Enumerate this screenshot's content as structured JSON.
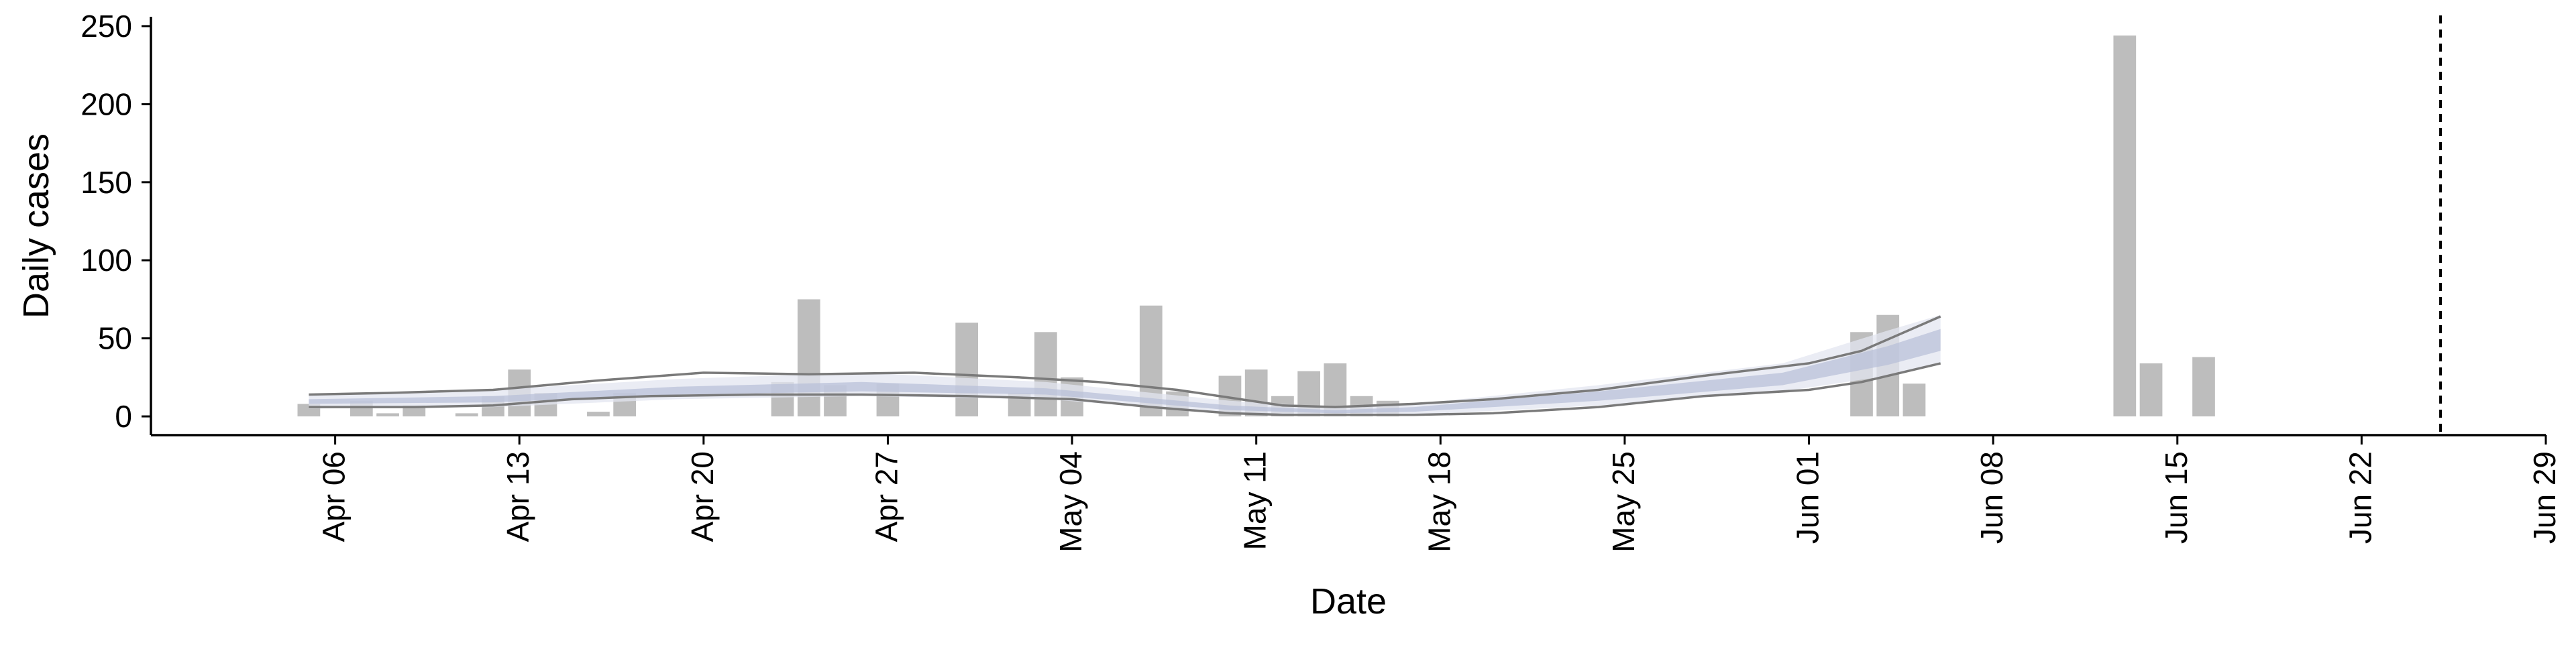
{
  "chart_data": {
    "type": "bar",
    "xlabel": "Date",
    "ylabel": "Daily cases",
    "xlim": [
      "2020-03-30",
      "2020-06-29"
    ],
    "ylim": [
      -12,
      256
    ],
    "x_ticks": [
      {
        "date": "2020-04-06",
        "label": "Apr 06"
      },
      {
        "date": "2020-04-13",
        "label": "Apr 13"
      },
      {
        "date": "2020-04-20",
        "label": "Apr 20"
      },
      {
        "date": "2020-04-27",
        "label": "Apr 27"
      },
      {
        "date": "2020-05-04",
        "label": "May 04"
      },
      {
        "date": "2020-05-11",
        "label": "May 11"
      },
      {
        "date": "2020-05-18",
        "label": "May 18"
      },
      {
        "date": "2020-05-25",
        "label": "May 25"
      },
      {
        "date": "2020-06-01",
        "label": "Jun 01"
      },
      {
        "date": "2020-06-08",
        "label": "Jun 08"
      },
      {
        "date": "2020-06-15",
        "label": "Jun 15"
      },
      {
        "date": "2020-06-22",
        "label": "Jun 22"
      },
      {
        "date": "2020-06-29",
        "label": "Jun 29"
      }
    ],
    "y_ticks": [
      0,
      50,
      100,
      150,
      200,
      250
    ],
    "grid": false,
    "bars": [
      {
        "date": "2020-04-05",
        "value": 8
      },
      {
        "date": "2020-04-07",
        "value": 10
      },
      {
        "date": "2020-04-08",
        "value": 2
      },
      {
        "date": "2020-04-09",
        "value": 7
      },
      {
        "date": "2020-04-11",
        "value": 2
      },
      {
        "date": "2020-04-12",
        "value": 13
      },
      {
        "date": "2020-04-13",
        "value": 30
      },
      {
        "date": "2020-04-14",
        "value": 15
      },
      {
        "date": "2020-04-16",
        "value": 3
      },
      {
        "date": "2020-04-17",
        "value": 15
      },
      {
        "date": "2020-04-23",
        "value": 22
      },
      {
        "date": "2020-04-24",
        "value": 75
      },
      {
        "date": "2020-04-25",
        "value": 20
      },
      {
        "date": "2020-04-27",
        "value": 21
      },
      {
        "date": "2020-04-30",
        "value": 60
      },
      {
        "date": "2020-05-02",
        "value": 15
      },
      {
        "date": "2020-05-03",
        "value": 54
      },
      {
        "date": "2020-05-04",
        "value": 25
      },
      {
        "date": "2020-05-07",
        "value": 71
      },
      {
        "date": "2020-05-08",
        "value": 16
      },
      {
        "date": "2020-05-10",
        "value": 26
      },
      {
        "date": "2020-05-11",
        "value": 30
      },
      {
        "date": "2020-05-12",
        "value": 13
      },
      {
        "date": "2020-05-13",
        "value": 29
      },
      {
        "date": "2020-05-14",
        "value": 34
      },
      {
        "date": "2020-05-15",
        "value": 13
      },
      {
        "date": "2020-05-16",
        "value": 10
      },
      {
        "date": "2020-06-03",
        "value": 54
      },
      {
        "date": "2020-06-04",
        "value": 65
      },
      {
        "date": "2020-06-05",
        "value": 21
      },
      {
        "date": "2020-06-13",
        "value": 244
      },
      {
        "date": "2020-06-14",
        "value": 34
      },
      {
        "date": "2020-06-16",
        "value": 38
      }
    ],
    "bands": [
      {
        "role": "outer",
        "x": [
          "2020-04-05",
          "2020-04-12",
          "2020-04-19",
          "2020-04-26",
          "2020-05-03",
          "2020-05-10",
          "2020-05-14",
          "2020-05-17",
          "2020-05-24",
          "2020-05-31",
          "2020-06-04",
          "2020-06-06"
        ],
        "upper": [
          14,
          17,
          24,
          28,
          22,
          10,
          6,
          8,
          20,
          34,
          55,
          65
        ],
        "lower": [
          5,
          6,
          11,
          13,
          11,
          2,
          1,
          1,
          7,
          16,
          26,
          34
        ]
      },
      {
        "role": "inner",
        "x": [
          "2020-04-05",
          "2020-04-12",
          "2020-04-19",
          "2020-04-26",
          "2020-05-03",
          "2020-05-10",
          "2020-05-14",
          "2020-05-17",
          "2020-05-24",
          "2020-05-31",
          "2020-06-04",
          "2020-06-06"
        ],
        "upper": [
          11,
          13,
          19,
          22,
          18,
          7,
          4,
          6,
          16,
          28,
          45,
          56
        ],
        "lower": [
          8,
          9,
          14,
          16,
          14,
          4,
          2,
          3,
          10,
          20,
          33,
          42
        ]
      }
    ],
    "boundary_lines": [
      {
        "x": [
          "2020-04-05",
          "2020-04-08",
          "2020-04-12",
          "2020-04-14",
          "2020-04-16",
          "2020-04-20",
          "2020-04-24",
          "2020-04-28",
          "2020-05-02",
          "2020-05-05",
          "2020-05-08",
          "2020-05-10",
          "2020-05-12",
          "2020-05-14",
          "2020-05-17",
          "2020-05-20",
          "2020-05-24",
          "2020-05-28",
          "2020-06-01",
          "2020-06-03",
          "2020-06-06"
        ],
        "values": [
          14,
          15,
          17,
          20,
          23,
          28,
          27,
          28,
          25,
          22,
          17,
          12,
          7,
          6,
          8,
          11,
          17,
          26,
          34,
          42,
          64
        ]
      },
      {
        "x": [
          "2020-04-05",
          "2020-04-09",
          "2020-04-12",
          "2020-04-15",
          "2020-04-18",
          "2020-04-22",
          "2020-04-26",
          "2020-04-30",
          "2020-05-04",
          "2020-05-07",
          "2020-05-10",
          "2020-05-12",
          "2020-05-14",
          "2020-05-17",
          "2020-05-20",
          "2020-05-24",
          "2020-05-28",
          "2020-06-01",
          "2020-06-03",
          "2020-06-06"
        ],
        "values": [
          6,
          6,
          7,
          11,
          13,
          14,
          14,
          13,
          11,
          6,
          2,
          1,
          1,
          1,
          2,
          6,
          13,
          17,
          22,
          34
        ]
      }
    ],
    "vertical_line": {
      "date": "2020-06-25",
      "style": "dashed"
    },
    "colors": {
      "bar": "#bdbdbd",
      "band_outer": "#e3e6f0",
      "band_inner": "#b6bfd7",
      "boundary_line": "#7a7a7a",
      "axis": "#000000",
      "vertical_line": "#000000"
    }
  }
}
